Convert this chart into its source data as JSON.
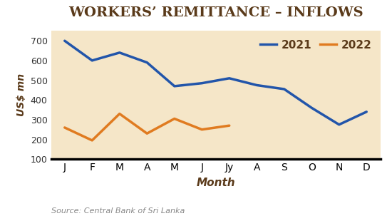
{
  "title": "WORKERS’ REMITTANCE – INFLOWS",
  "xlabel": "Month",
  "ylabel": "US$ mn",
  "source": "Source: Central Bank of Sri Lanka",
  "months": [
    "J",
    "F",
    "M",
    "A",
    "M",
    "J",
    "Jy",
    "A",
    "S",
    "O",
    "N",
    "D"
  ],
  "data_2021": [
    700,
    600,
    640,
    590,
    470,
    485,
    510,
    475,
    455,
    360,
    275,
    340
  ],
  "data_2022": [
    260,
    195,
    330,
    230,
    305,
    250,
    270,
    null,
    null,
    null,
    null,
    null
  ],
  "color_2021": "#2255aa",
  "color_2022": "#e07b20",
  "ylim": [
    100,
    750
  ],
  "yticks": [
    100,
    200,
    300,
    400,
    500,
    600,
    700
  ],
  "plot_bg_color": "#f5e6c8",
  "fig_bg_color": "#ffffff",
  "xlabel_band_color": "#e8d8b0",
  "title_color": "#5a3a1a",
  "tick_color": "#333333",
  "source_color": "#888888",
  "title_fontsize": 14,
  "axis_label_fontsize": 10,
  "tick_fontsize": 9,
  "legend_fontsize": 11,
  "source_fontsize": 8,
  "line_width": 2.5
}
